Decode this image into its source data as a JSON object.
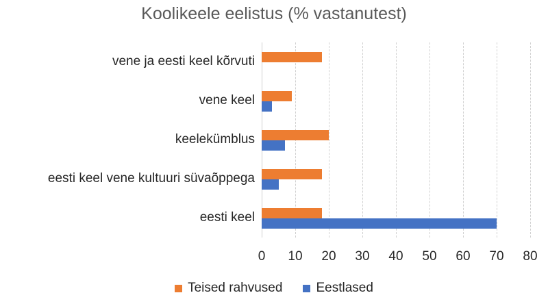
{
  "chart_data": {
    "type": "bar",
    "orientation": "horizontal",
    "title": "Koolikeele eelistus (% vastanutest)",
    "xlabel": "",
    "ylabel": "",
    "xlim": [
      0,
      80
    ],
    "x_ticks": [
      0,
      10,
      20,
      30,
      40,
      50,
      60,
      70,
      80
    ],
    "grid": true,
    "legend_position": "bottom",
    "categories": [
      "vene ja eesti keel kõrvuti",
      "vene keel",
      "keelekümblus",
      "eesti keel vene kultuuri süvaõppega",
      "eesti keel"
    ],
    "series": [
      {
        "name": "Teised rahvused",
        "color": "#ED7D31",
        "values": [
          18,
          9,
          20,
          18,
          18
        ]
      },
      {
        "name": "Eestlased",
        "color": "#4472C4",
        "values": [
          0,
          3,
          7,
          5,
          70
        ]
      }
    ]
  },
  "legend": {
    "items": [
      {
        "label": "Teised rahvused",
        "color": "#ED7D31"
      },
      {
        "label": "Eestlased",
        "color": "#4472C4"
      }
    ]
  }
}
